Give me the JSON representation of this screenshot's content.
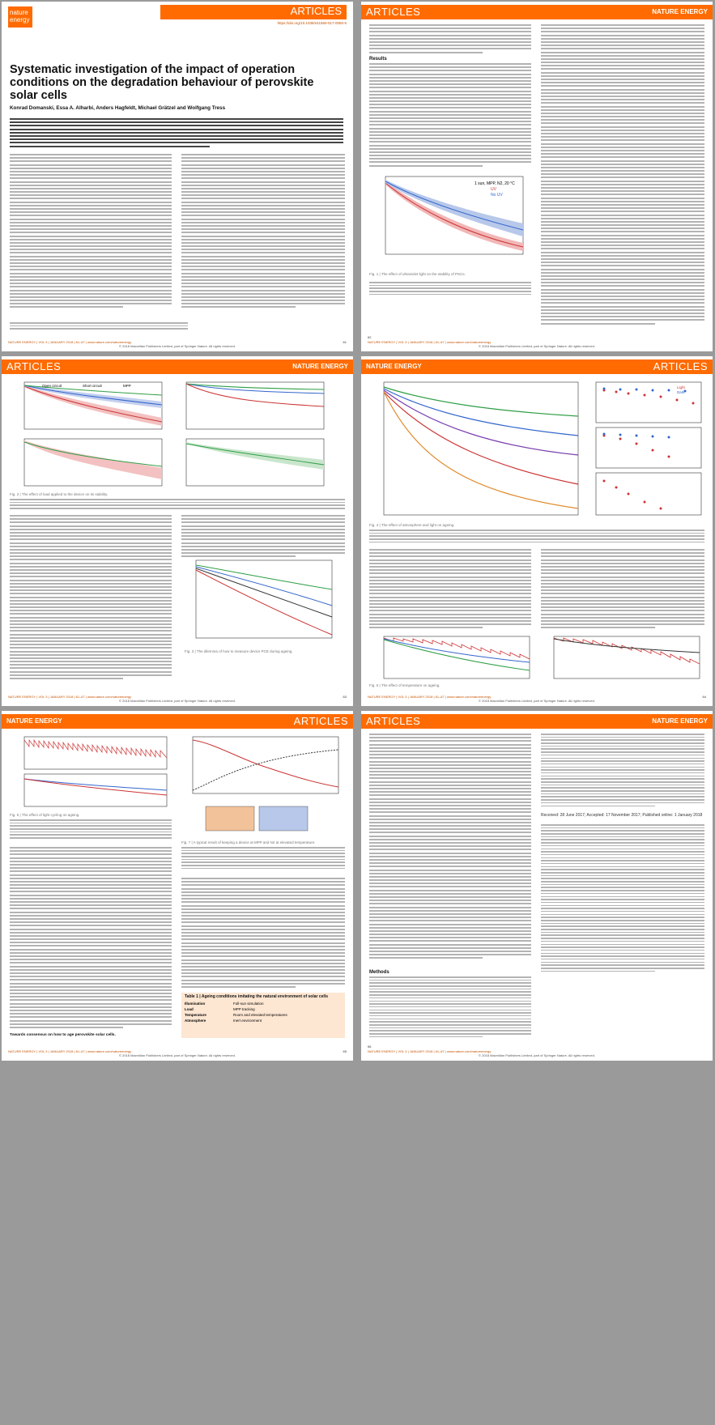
{
  "journal": {
    "section": "ARTICLES",
    "name": "NATURE ENERGY",
    "logo_top": "nature",
    "logo_bottom": "energy",
    "doi": "https://doi.org/10.1038/s41560-017-0060-5"
  },
  "article": {
    "title": "Systematic investigation of the impact of operation conditions on the degradation behaviour of perovskite solar cells",
    "authors": "Konrad Domanski, Essa A. Alharbi, Anders Hagfeldt, Michael Grätzel and Wolfgang Tress"
  },
  "pages": [
    {
      "number": "61",
      "footer": "NATURE ENERGY | VOL 3 | JANUARY 2018 | 61–67 | www.nature.com/natureenergy"
    },
    {
      "number": "62",
      "footer": "NATURE ENERGY | VOL 3 | JANUARY 2018 | 61–67 | www.nature.com/natureenergy"
    },
    {
      "number": "63",
      "footer": "NATURE ENERGY | VOL 3 | JANUARY 2018 | 61–67 | www.nature.com/natureenergy"
    },
    {
      "number": "64",
      "footer": "NATURE ENERGY | VOL 3 | JANUARY 2018 | 61–67 | www.nature.com/natureenergy"
    },
    {
      "number": "65",
      "footer": "NATURE ENERGY | VOL 3 | JANUARY 2018 | 61–67 | www.nature.com/natureenergy"
    },
    {
      "number": "66",
      "footer": "NATURE ENERGY | VOL 3 | JANUARY 2018 | 61–67 | www.nature.com/natureenergy"
    }
  ],
  "copyright": "© 2018 Macmillan Publishers Limited, part of Springer Nature. All rights reserved.",
  "headings": {
    "results": "Results",
    "methods": "Methods",
    "towards": "Towards consensus on how to age perovskite solar cells."
  },
  "figures": {
    "fig1": {
      "caption": "Fig. 1 | The effect of ultraviolet light on the stability of PSCs.",
      "legend": [
        "1 sun, MPP, N2, 20 °C",
        "UV",
        "No UV"
      ]
    },
    "fig2": {
      "caption": "Fig. 2 | The effect of load applied to the device on its stability.",
      "legend": [
        "Open circuit",
        "Short circuit",
        "MPP"
      ]
    },
    "fig3": {
      "caption": "Fig. 3 | The dilemma of how to measure device PCE during ageing."
    },
    "fig4": {
      "caption": "Fig. 4 | The effect of atmosphere and light on ageing.",
      "legend": [
        "Light",
        "Dark"
      ]
    },
    "fig5": {
      "caption": "Fig. 5 | The effect of temperature on ageing."
    },
    "fig6": {
      "caption": "Fig. 6 | The effect of light cycling on ageing."
    },
    "fig7": {
      "caption": "Fig. 7 | A typical result of keeping a device at MPP and N2 at elevated temperature."
    }
  },
  "table1": {
    "title": "Table 1 | Ageing conditions imitating the natural environment of solar cells",
    "rows": [
      {
        "k": "Illumination",
        "v": "Full-sun simulation"
      },
      {
        "k": "Load",
        "v": "MPP tracking"
      },
      {
        "k": "Temperature",
        "v": "Room and elevated temperatures"
      },
      {
        "k": "Atmosphere",
        "v": "Inert environment"
      }
    ]
  },
  "dates": "Received: 28 June 2017; Accepted: 17 November 2017; Published online: 1 January 2018"
}
